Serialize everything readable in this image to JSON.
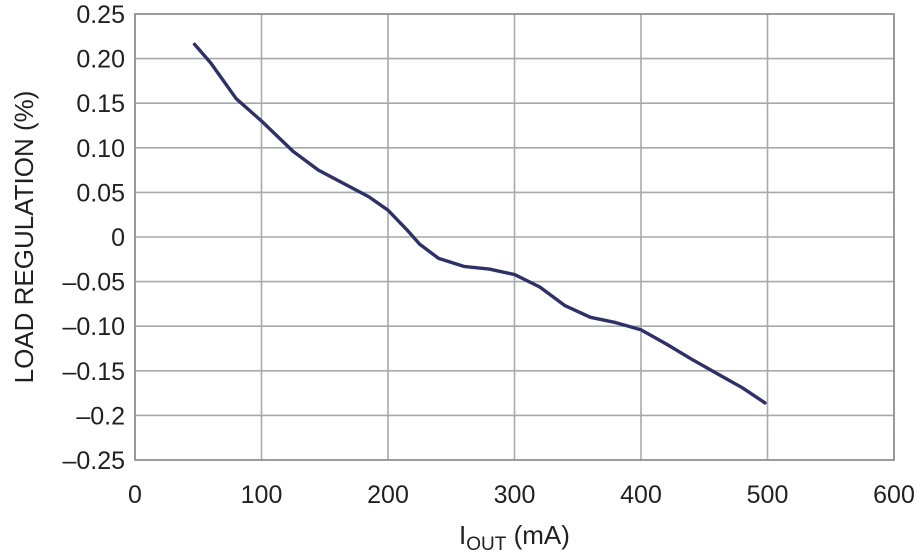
{
  "chart_data": {
    "type": "line",
    "title": "",
    "xlabel": {
      "main": "I",
      "sub": "OUT",
      "units": " (mA)"
    },
    "ylabel": "LOAD REGULATION (%)",
    "xlim": [
      0,
      600
    ],
    "ylim": [
      -0.25,
      0.25
    ],
    "x_ticks": [
      0,
      100,
      200,
      300,
      400,
      500,
      600
    ],
    "x_tick_labels": [
      "0",
      "100",
      "200",
      "300",
      "400",
      "500",
      "600"
    ],
    "y_ticks": [
      0.25,
      0.2,
      0.15,
      0.1,
      0.05,
      0,
      -0.05,
      -0.1,
      -0.15,
      -0.2,
      -0.25
    ],
    "y_tick_labels": [
      "0.25",
      "0.20",
      "0.15",
      "0.10",
      "0.05",
      "0",
      "–0.05",
      "–0.10",
      "–0.15",
      "–0.2",
      "–0.25"
    ],
    "grid": true,
    "series": [
      {
        "name": "Load Regulation",
        "color": "#2e3168",
        "x": [
          47,
          60,
          80,
          100,
          125,
          145,
          165,
          185,
          200,
          215,
          225,
          240,
          260,
          280,
          300,
          320,
          340,
          360,
          380,
          400,
          420,
          440,
          460,
          480,
          498
        ],
        "y": [
          0.216,
          0.195,
          0.155,
          0.13,
          0.096,
          0.075,
          0.06,
          0.045,
          0.03,
          0.008,
          -0.008,
          -0.024,
          -0.033,
          -0.036,
          -0.042,
          -0.056,
          -0.077,
          -0.09,
          -0.096,
          -0.104,
          -0.12,
          -0.137,
          -0.153,
          -0.169,
          -0.186
        ]
      }
    ]
  }
}
